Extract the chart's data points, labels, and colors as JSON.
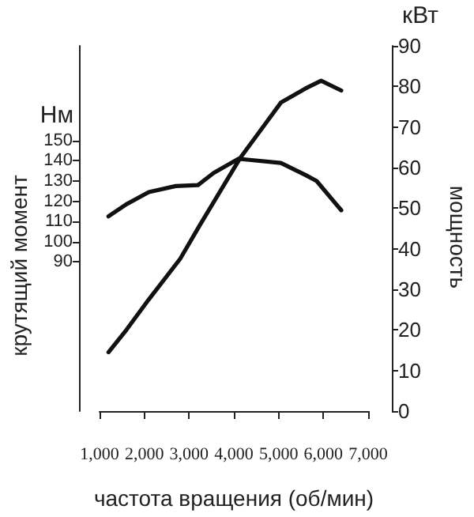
{
  "chart_data": {
    "type": "line",
    "xlabel": "частота вращения (об/мин)",
    "ylabel": "крутящий момент",
    "y2label": "мощность",
    "annotations": [
      "Нм",
      "кВт"
    ],
    "series": [
      {
        "color": "#111111",
        "axis": "y",
        "x": [
          1200,
          1600,
          2100,
          2700,
          3200,
          3550,
          4100,
          4350,
          5050,
          5600,
          5850,
          6400
        ],
        "values": [
          112.5,
          118.5,
          124.5,
          127.5,
          128,
          134,
          141,
          140.5,
          139,
          133,
          130,
          115.5
        ]
      },
      {
        "color": "#111111",
        "axis": "y2",
        "x": [
          1200,
          1600,
          2100,
          2800,
          3250,
          4150,
          4650,
          5050,
          5600,
          5950,
          6400
        ],
        "values": [
          14.5,
          20,
          27.5,
          37.5,
          46,
          62.5,
          70,
          76,
          79.5,
          81.4,
          79
        ]
      }
    ],
    "xlim": [
      1000,
      7000
    ],
    "xticks": [
      {
        "value": 1000,
        "label": "1,000"
      },
      {
        "value": 2000,
        "label": "2,000"
      },
      {
        "value": 3000,
        "label": "3,000"
      },
      {
        "value": 4000,
        "label": "4,000"
      },
      {
        "value": 5000,
        "label": "5,000"
      },
      {
        "value": 6000,
        "label": "6,000"
      },
      {
        "value": 7000,
        "label": "7,000"
      }
    ],
    "ylim": [
      16,
      197
    ],
    "yticks": [
      90,
      100,
      110,
      120,
      130,
      140,
      150
    ],
    "y2lim": [
      0,
      90
    ],
    "y2ticks": [
      0,
      10,
      20,
      30,
      40,
      50,
      60,
      70,
      80,
      90
    ],
    "grid": false,
    "marker": "none",
    "line_style": "solid"
  }
}
